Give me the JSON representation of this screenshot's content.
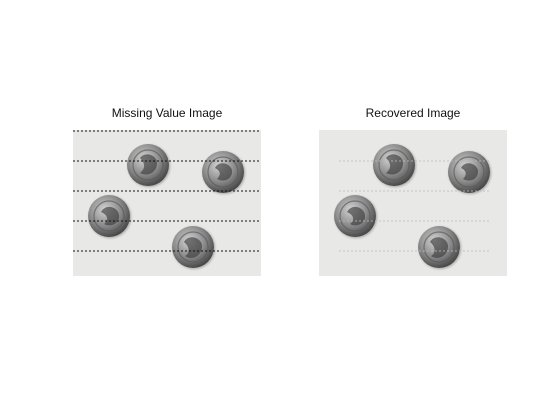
{
  "figure": {
    "panels": [
      {
        "title": "Missing Value Image"
      },
      {
        "title": "Recovered Image"
      }
    ]
  },
  "colors": {
    "background": "#ffffff",
    "image_background": "#e8e8e6",
    "coin_dark": "#4a4a4a",
    "coin_mid": "#8a8a8a",
    "coin_light": "#bdbdbd",
    "missing_lines": "#111111",
    "recovered_lines": "#bcbcbc"
  }
}
